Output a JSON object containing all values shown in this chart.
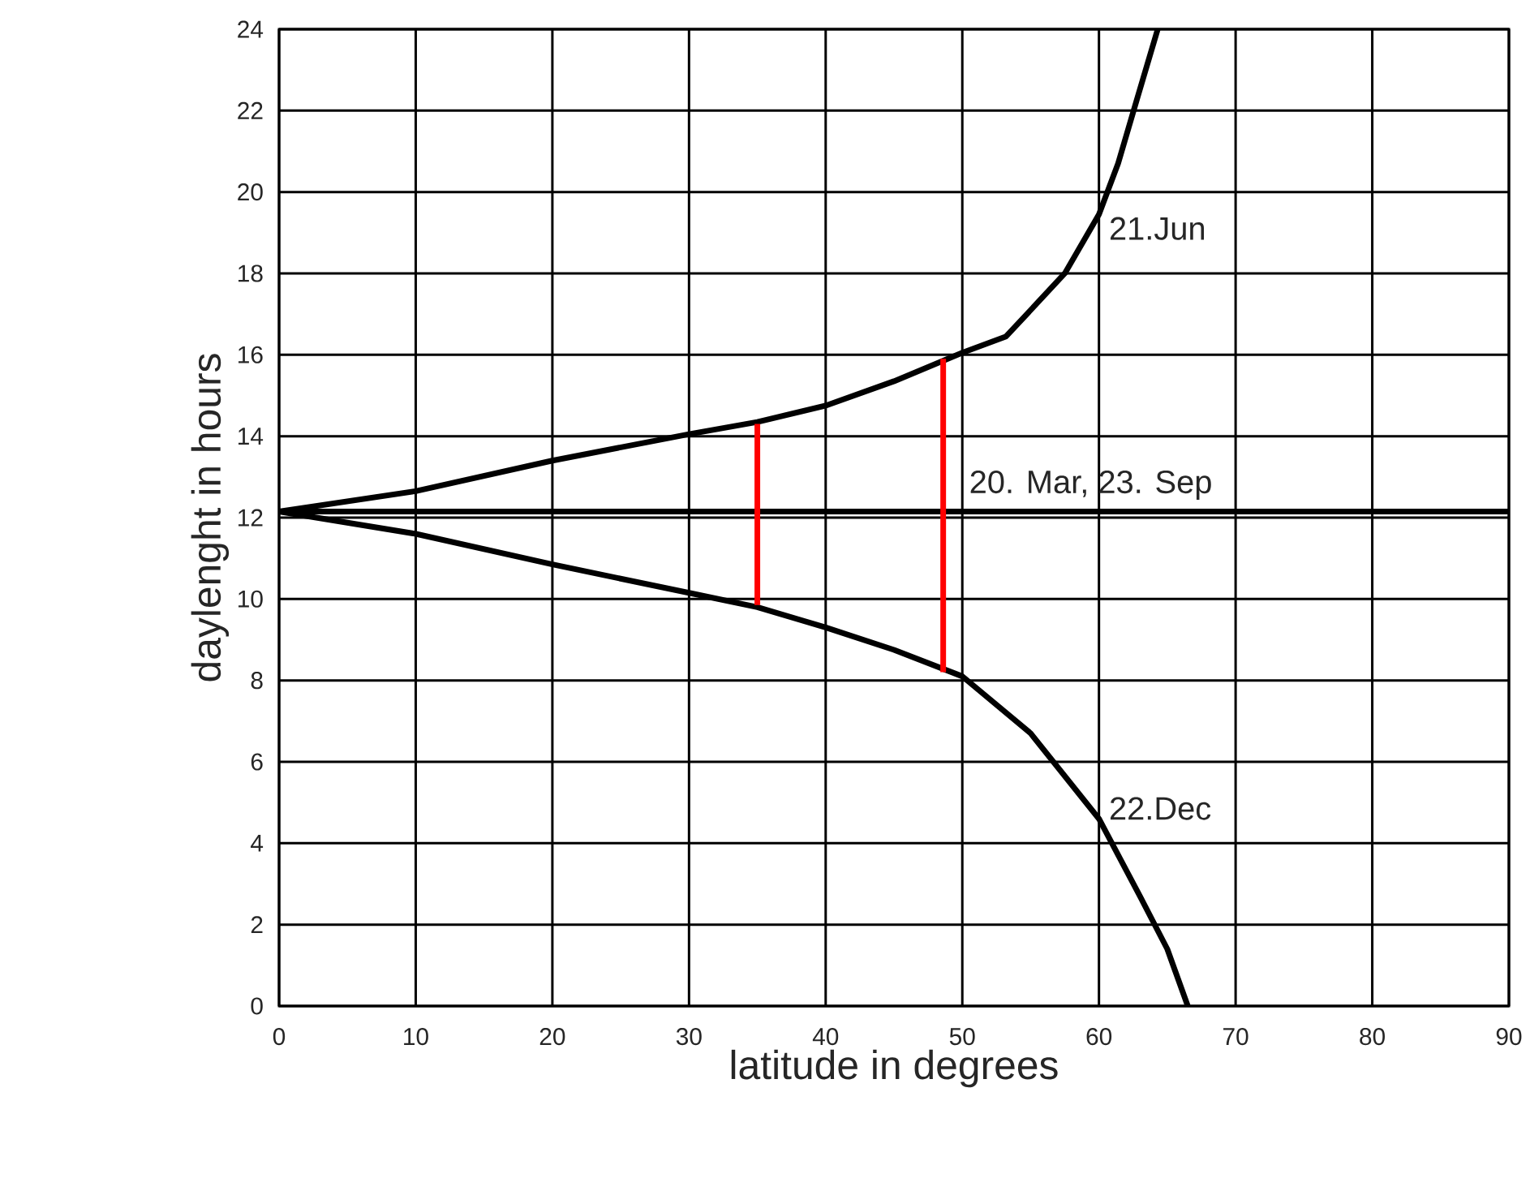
{
  "chart_data": {
    "type": "line",
    "xlabel": "latitude in degrees",
    "ylabel": "daylenght in hours",
    "xlim": [
      0,
      90
    ],
    "ylim": [
      0,
      24
    ],
    "xticks": [
      0,
      10,
      20,
      30,
      40,
      50,
      60,
      70,
      80,
      90
    ],
    "yticks": [
      0,
      2,
      4,
      6,
      8,
      10,
      12,
      14,
      16,
      18,
      20,
      22,
      24
    ],
    "grid": true,
    "line_style": "solid",
    "marker": "none",
    "series": [
      {
        "name": "21.Jun",
        "color": "#000000",
        "x": [
          0,
          10,
          20,
          30,
          35,
          40,
          45,
          50,
          53.2,
          57.5,
          60,
          61.4,
          62.8,
          64.3
        ],
        "values": [
          12.15,
          12.65,
          13.4,
          14.05,
          14.35,
          14.75,
          15.35,
          16.05,
          16.45,
          18,
          19.45,
          20.7,
          22.3,
          24
        ]
      },
      {
        "name": "22.Dec",
        "color": "#000000",
        "x": [
          0,
          10,
          20,
          30,
          35,
          40,
          45,
          50,
          55,
          60,
          63,
          65,
          66.5
        ],
        "values": [
          12.15,
          11.6,
          10.85,
          10.15,
          9.8,
          9.3,
          8.75,
          8.1,
          6.7,
          4.6,
          2.7,
          1.4,
          0
        ]
      },
      {
        "name": "20. Mar, 23. Sep",
        "color": "#000000",
        "x": [
          0,
          90
        ],
        "values": [
          12.15,
          12.15
        ]
      },
      {
        "color": "#ff0000",
        "x": [
          35,
          35
        ],
        "values": [
          9.85,
          14.3
        ]
      },
      {
        "color": "#ff0000",
        "x": [
          48.6,
          48.6
        ],
        "values": [
          8.2,
          15.9
        ]
      }
    ]
  }
}
